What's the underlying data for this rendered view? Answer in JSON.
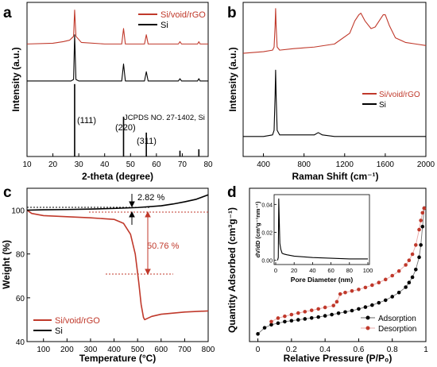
{
  "chart_data": [
    {
      "panel": "a",
      "type": "line",
      "xlabel": "2-theta (degree)",
      "ylabel": "Intensity (a.u.)",
      "xlim": [
        10,
        80
      ],
      "xticks": [
        10,
        20,
        30,
        40,
        50,
        60,
        70,
        80
      ],
      "ylim": [
        0,
        100
      ],
      "series": [
        {
          "name": "Si/void/rGO",
          "color": "#c0392b",
          "x": [
            10,
            20,
            24,
            26.5,
            28,
            28.4,
            28.9,
            31,
            40,
            46.6,
            47.3,
            48,
            55.4,
            56.1,
            56.8,
            68.5,
            69.1,
            69.7,
            75.9,
            76.4,
            76.9,
            80
          ],
          "y": [
            73,
            73.5,
            74.5,
            75.5,
            78,
            95,
            78,
            74,
            73,
            73,
            83,
            73,
            73,
            79,
            73,
            73,
            74.5,
            73,
            73,
            74.5,
            73,
            73
          ]
        },
        {
          "name": "Si",
          "color": "#000000",
          "x": [
            10,
            27,
            28,
            28.4,
            28.9,
            30,
            46.6,
            47.3,
            48,
            55.4,
            56.1,
            56.8,
            68.5,
            69.1,
            69.7,
            75.9,
            76.4,
            76.9,
            80
          ],
          "y": [
            49,
            49,
            50,
            79,
            50,
            49,
            49,
            60,
            49,
            49,
            55,
            49,
            49,
            50.5,
            49,
            49,
            50.5,
            49,
            49
          ]
        }
      ],
      "reference": {
        "label": "JCPDS NO. 27-1402, Si",
        "x": [
          28.4,
          47.3,
          56.1,
          69.1,
          76.4
        ],
        "heights": [
          1.0,
          0.55,
          0.33,
          0.08,
          0.1
        ]
      },
      "annotations": [
        "(111)",
        "(220)",
        "(311)"
      ]
    },
    {
      "panel": "b",
      "type": "line",
      "xlabel": "Raman Shift (cm⁻¹)",
      "ylabel": "Intensity (a.u.)",
      "xlim": [
        200,
        2000
      ],
      "xticks": [
        400,
        800,
        1200,
        1600,
        2000
      ],
      "ylim": [
        0,
        100
      ],
      "series": [
        {
          "name": "Si/void/rGO",
          "color": "#c0392b",
          "x": [
            200,
            400,
            490,
            505,
            515,
            520,
            525,
            535,
            560,
            700,
            900,
            1100,
            1250,
            1300,
            1340,
            1360,
            1400,
            1460,
            1500,
            1540,
            1580,
            1600,
            1640,
            1700,
            1800,
            1900,
            2000
          ],
          "y": [
            67,
            68,
            69,
            71,
            85,
            96,
            85,
            71,
            69,
            70,
            71,
            73,
            80,
            88,
            92,
            93,
            88,
            83,
            84,
            88,
            92,
            92,
            85,
            77,
            74,
            73,
            72
          ]
        },
        {
          "name": "Si",
          "color": "#000000",
          "x": [
            200,
            400,
            490,
            505,
            515,
            520,
            525,
            535,
            560,
            900,
            940,
            980,
            1100,
            1500,
            2000
          ],
          "y": [
            13,
            13,
            14,
            17,
            40,
            56,
            40,
            17,
            14,
            14,
            15.5,
            14,
            13,
            13,
            13
          ]
        }
      ]
    },
    {
      "panel": "c",
      "type": "line",
      "xlabel": "Temperature (°C)",
      "ylabel": "Weight (%)",
      "xlim": [
        30,
        800
      ],
      "xticks": [
        100,
        200,
        300,
        400,
        500,
        600,
        700,
        800
      ],
      "ylim": [
        40,
        110
      ],
      "yticks": [
        40,
        60,
        80,
        100
      ],
      "series": [
        {
          "name": "Si/void/rGO",
          "color": "#c0392b",
          "x": [
            30,
            50,
            100,
            200,
            300,
            400,
            440,
            470,
            490,
            505,
            515,
            525,
            530,
            540,
            560,
            600,
            700,
            800
          ],
          "y": [
            100,
            98.5,
            97.5,
            97,
            96.5,
            95.8,
            94,
            89,
            80,
            67,
            57,
            51,
            50,
            50.5,
            51.5,
            52.5,
            53.5,
            54
          ]
        },
        {
          "name": "Si",
          "color": "#000000",
          "x": [
            30,
            100,
            200,
            300,
            400,
            500,
            600,
            650,
            700,
            750,
            800
          ],
          "y": [
            100,
            100.2,
            100.3,
            100.5,
            100.8,
            101.2,
            102,
            102.8,
            103.8,
            105,
            107
          ]
        }
      ],
      "annotations": [
        "2.82 %",
        "50.76 %"
      ]
    },
    {
      "panel": "d",
      "type": "line",
      "xlabel": "Relative Pressure (P/P₀)",
      "ylabel": "Quantity Adsorbed (cm³g⁻¹)",
      "xlim": [
        -0.05,
        1.0
      ],
      "xticks": [
        0.0,
        0.2,
        0.4,
        0.6,
        0.8,
        1.0
      ],
      "ylim": [
        0,
        100
      ],
      "series": [
        {
          "name": "Adsorption",
          "color": "#000000",
          "x": [
            0.0,
            0.04,
            0.08,
            0.12,
            0.16,
            0.2,
            0.24,
            0.28,
            0.32,
            0.36,
            0.4,
            0.44,
            0.48,
            0.52,
            0.56,
            0.6,
            0.64,
            0.68,
            0.72,
            0.76,
            0.8,
            0.84,
            0.88,
            0.9,
            0.92,
            0.94,
            0.96,
            0.97,
            0.98,
            0.99
          ],
          "y": [
            5,
            9,
            11,
            12,
            13,
            13.6,
            14.2,
            14.8,
            15.4,
            16,
            16.8,
            17.6,
            18.5,
            19.3,
            20.2,
            21.3,
            22.5,
            23.8,
            25.3,
            27,
            29.3,
            32,
            35.5,
            38.5,
            42,
            47,
            55,
            63,
            75,
            87
          ]
        },
        {
          "name": "Desorption",
          "color": "#c0392b",
          "x": [
            0.99,
            0.98,
            0.97,
            0.96,
            0.94,
            0.92,
            0.9,
            0.88,
            0.84,
            0.8,
            0.76,
            0.72,
            0.68,
            0.64,
            0.6,
            0.56,
            0.52,
            0.49,
            0.47,
            0.45,
            0.4,
            0.36,
            0.32,
            0.28,
            0.24,
            0.2,
            0.16,
            0.12,
            0.08
          ],
          "y": [
            87,
            84,
            79,
            73,
            63,
            57,
            53,
            50,
            46,
            43,
            40.5,
            38.5,
            36.8,
            35.3,
            34,
            33,
            32,
            31,
            26,
            23.5,
            22.3,
            21.3,
            20.4,
            19.5,
            18.6,
            17.6,
            16.5,
            15.3,
            13
          ]
        }
      ],
      "inset": {
        "xlabel": "Pore Diameter (nm)",
        "ylabel": "dV/dD (cm³g⁻¹nm⁻¹)",
        "xlim": [
          0,
          100
        ],
        "xticks": [
          0,
          20,
          40,
          60,
          80,
          100
        ],
        "ylim": [
          -0.003,
          0.047
        ],
        "yticks": [
          "0.00",
          "0.02",
          "0.04"
        ],
        "yticks_values": [
          0.0,
          0.02,
          0.04
        ],
        "x": [
          2,
          2.8,
          3.3,
          3.8,
          4.5,
          5.5,
          7,
          9,
          12,
          16,
          20,
          30,
          40,
          60,
          80,
          100
        ],
        "y": [
          0.0,
          0.002,
          0.044,
          0.03,
          0.012,
          0.008,
          0.005,
          0.0045,
          0.004,
          0.0035,
          0.003,
          0.0025,
          0.002,
          0.0015,
          0.001,
          0.001
        ]
      }
    }
  ]
}
